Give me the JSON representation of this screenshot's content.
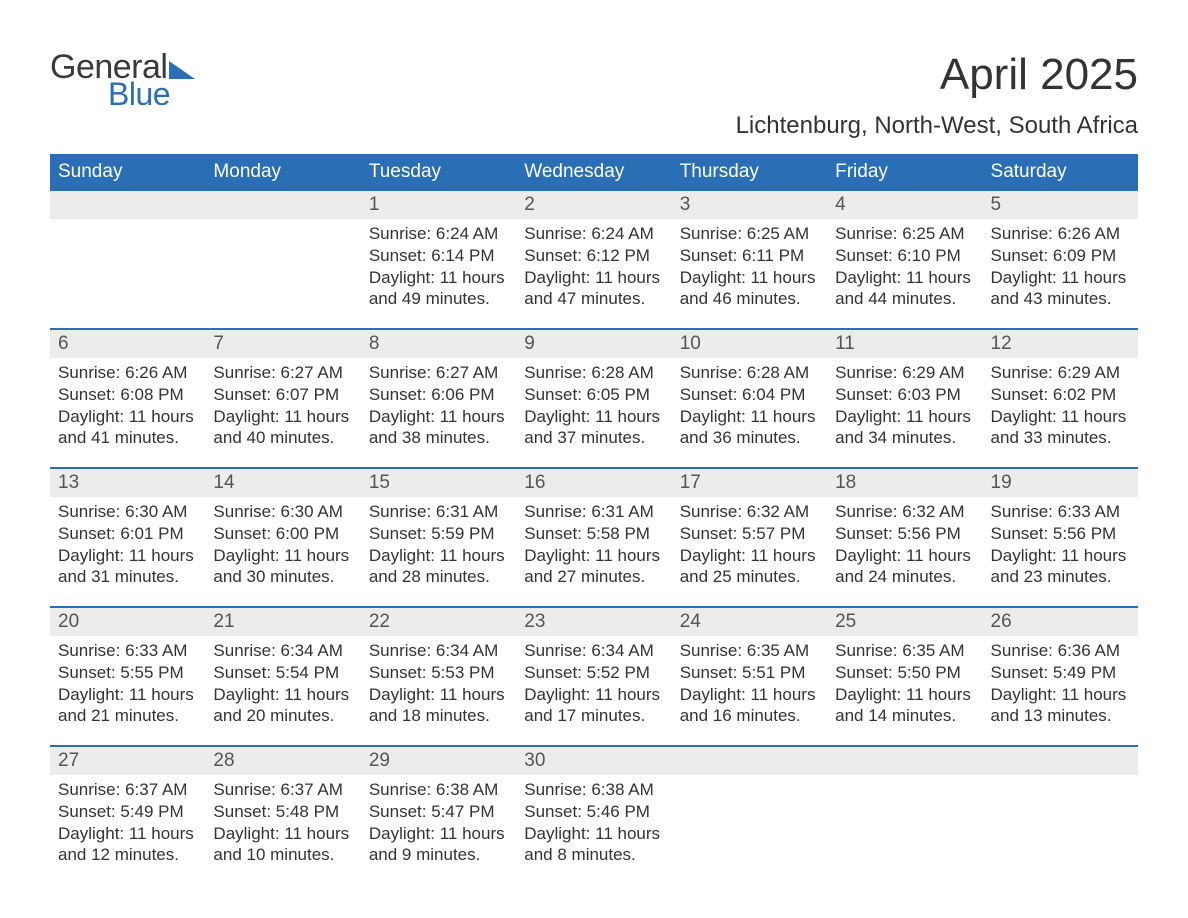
{
  "brand": {
    "general": "General",
    "blue": "Blue"
  },
  "title": "April 2025",
  "location": "Lichtenburg, North-West, South Africa",
  "colors": {
    "header_bg": "#2a6fb5",
    "header_text": "#ffffff",
    "daynum_bg": "#ececec",
    "daynum_text": "#555555",
    "body_text": "#333333",
    "rule": "#2a6fb5",
    "logo_blue": "#2a6fb5",
    "logo_dark": "#3a3a3a"
  },
  "weekdays": [
    "Sunday",
    "Monday",
    "Tuesday",
    "Wednesday",
    "Thursday",
    "Friday",
    "Saturday"
  ],
  "weeks": [
    {
      "daynums": [
        "",
        "",
        "1",
        "2",
        "3",
        "4",
        "5"
      ],
      "cells": [
        {
          "sunrise": "",
          "sunset": "",
          "daylight": ""
        },
        {
          "sunrise": "",
          "sunset": "",
          "daylight": ""
        },
        {
          "sunrise": "Sunrise: 6:24 AM",
          "sunset": "Sunset: 6:14 PM",
          "daylight": "Daylight: 11 hours and 49 minutes."
        },
        {
          "sunrise": "Sunrise: 6:24 AM",
          "sunset": "Sunset: 6:12 PM",
          "daylight": "Daylight: 11 hours and 47 minutes."
        },
        {
          "sunrise": "Sunrise: 6:25 AM",
          "sunset": "Sunset: 6:11 PM",
          "daylight": "Daylight: 11 hours and 46 minutes."
        },
        {
          "sunrise": "Sunrise: 6:25 AM",
          "sunset": "Sunset: 6:10 PM",
          "daylight": "Daylight: 11 hours and 44 minutes."
        },
        {
          "sunrise": "Sunrise: 6:26 AM",
          "sunset": "Sunset: 6:09 PM",
          "daylight": "Daylight: 11 hours and 43 minutes."
        }
      ]
    },
    {
      "daynums": [
        "6",
        "7",
        "8",
        "9",
        "10",
        "11",
        "12"
      ],
      "cells": [
        {
          "sunrise": "Sunrise: 6:26 AM",
          "sunset": "Sunset: 6:08 PM",
          "daylight": "Daylight: 11 hours and 41 minutes."
        },
        {
          "sunrise": "Sunrise: 6:27 AM",
          "sunset": "Sunset: 6:07 PM",
          "daylight": "Daylight: 11 hours and 40 minutes."
        },
        {
          "sunrise": "Sunrise: 6:27 AM",
          "sunset": "Sunset: 6:06 PM",
          "daylight": "Daylight: 11 hours and 38 minutes."
        },
        {
          "sunrise": "Sunrise: 6:28 AM",
          "sunset": "Sunset: 6:05 PM",
          "daylight": "Daylight: 11 hours and 37 minutes."
        },
        {
          "sunrise": "Sunrise: 6:28 AM",
          "sunset": "Sunset: 6:04 PM",
          "daylight": "Daylight: 11 hours and 36 minutes."
        },
        {
          "sunrise": "Sunrise: 6:29 AM",
          "sunset": "Sunset: 6:03 PM",
          "daylight": "Daylight: 11 hours and 34 minutes."
        },
        {
          "sunrise": "Sunrise: 6:29 AM",
          "sunset": "Sunset: 6:02 PM",
          "daylight": "Daylight: 11 hours and 33 minutes."
        }
      ]
    },
    {
      "daynums": [
        "13",
        "14",
        "15",
        "16",
        "17",
        "18",
        "19"
      ],
      "cells": [
        {
          "sunrise": "Sunrise: 6:30 AM",
          "sunset": "Sunset: 6:01 PM",
          "daylight": "Daylight: 11 hours and 31 minutes."
        },
        {
          "sunrise": "Sunrise: 6:30 AM",
          "sunset": "Sunset: 6:00 PM",
          "daylight": "Daylight: 11 hours and 30 minutes."
        },
        {
          "sunrise": "Sunrise: 6:31 AM",
          "sunset": "Sunset: 5:59 PM",
          "daylight": "Daylight: 11 hours and 28 minutes."
        },
        {
          "sunrise": "Sunrise: 6:31 AM",
          "sunset": "Sunset: 5:58 PM",
          "daylight": "Daylight: 11 hours and 27 minutes."
        },
        {
          "sunrise": "Sunrise: 6:32 AM",
          "sunset": "Sunset: 5:57 PM",
          "daylight": "Daylight: 11 hours and 25 minutes."
        },
        {
          "sunrise": "Sunrise: 6:32 AM",
          "sunset": "Sunset: 5:56 PM",
          "daylight": "Daylight: 11 hours and 24 minutes."
        },
        {
          "sunrise": "Sunrise: 6:33 AM",
          "sunset": "Sunset: 5:56 PM",
          "daylight": "Daylight: 11 hours and 23 minutes."
        }
      ]
    },
    {
      "daynums": [
        "20",
        "21",
        "22",
        "23",
        "24",
        "25",
        "26"
      ],
      "cells": [
        {
          "sunrise": "Sunrise: 6:33 AM",
          "sunset": "Sunset: 5:55 PM",
          "daylight": "Daylight: 11 hours and 21 minutes."
        },
        {
          "sunrise": "Sunrise: 6:34 AM",
          "sunset": "Sunset: 5:54 PM",
          "daylight": "Daylight: 11 hours and 20 minutes."
        },
        {
          "sunrise": "Sunrise: 6:34 AM",
          "sunset": "Sunset: 5:53 PM",
          "daylight": "Daylight: 11 hours and 18 minutes."
        },
        {
          "sunrise": "Sunrise: 6:34 AM",
          "sunset": "Sunset: 5:52 PM",
          "daylight": "Daylight: 11 hours and 17 minutes."
        },
        {
          "sunrise": "Sunrise: 6:35 AM",
          "sunset": "Sunset: 5:51 PM",
          "daylight": "Daylight: 11 hours and 16 minutes."
        },
        {
          "sunrise": "Sunrise: 6:35 AM",
          "sunset": "Sunset: 5:50 PM",
          "daylight": "Daylight: 11 hours and 14 minutes."
        },
        {
          "sunrise": "Sunrise: 6:36 AM",
          "sunset": "Sunset: 5:49 PM",
          "daylight": "Daylight: 11 hours and 13 minutes."
        }
      ]
    },
    {
      "daynums": [
        "27",
        "28",
        "29",
        "30",
        "",
        "",
        ""
      ],
      "cells": [
        {
          "sunrise": "Sunrise: 6:37 AM",
          "sunset": "Sunset: 5:49 PM",
          "daylight": "Daylight: 11 hours and 12 minutes."
        },
        {
          "sunrise": "Sunrise: 6:37 AM",
          "sunset": "Sunset: 5:48 PM",
          "daylight": "Daylight: 11 hours and 10 minutes."
        },
        {
          "sunrise": "Sunrise: 6:38 AM",
          "sunset": "Sunset: 5:47 PM",
          "daylight": "Daylight: 11 hours and 9 minutes."
        },
        {
          "sunrise": "Sunrise: 6:38 AM",
          "sunset": "Sunset: 5:46 PM",
          "daylight": "Daylight: 11 hours and 8 minutes."
        },
        {
          "sunrise": "",
          "sunset": "",
          "daylight": ""
        },
        {
          "sunrise": "",
          "sunset": "",
          "daylight": ""
        },
        {
          "sunrise": "",
          "sunset": "",
          "daylight": ""
        }
      ]
    }
  ]
}
